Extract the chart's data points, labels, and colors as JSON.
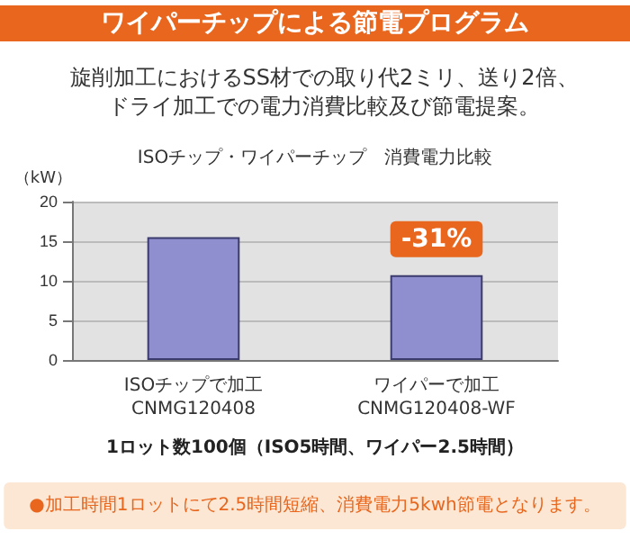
{
  "chart_data": {
    "type": "bar",
    "title": "ワイパーチップによる節電プログラム",
    "subtitle": "旋削加工におけるSS材での取り代2ミリ、送り2倍、ドライ加工での電力消費比較及び節電提案。",
    "categories": [
      "ISOチップで加工\nCNMG120408",
      "ワイパーで加工\nCNMG120408-WF"
    ],
    "values": [
      15.5,
      10.7
    ],
    "color": "#8f8fcf",
    "ylabel": "（kW）",
    "xlabel": "1ロット数100個（ISO5時間、ワイパー2.5時間）",
    "ylim": [
      0,
      20
    ],
    "yticks": [
      0,
      5,
      10,
      15,
      20
    ],
    "grid": "y",
    "annotations": [
      "ISOチップ・ワイパーチップ　消費電力比較",
      {
        "text": "-31%",
        "x": "ワイパーで加工\nCNMG120408-WF",
        "y": 10.7
      },
      "●加工時間1ロットにて2.5時間短縮、消費電力5kwh節電となります。"
    ]
  }
}
